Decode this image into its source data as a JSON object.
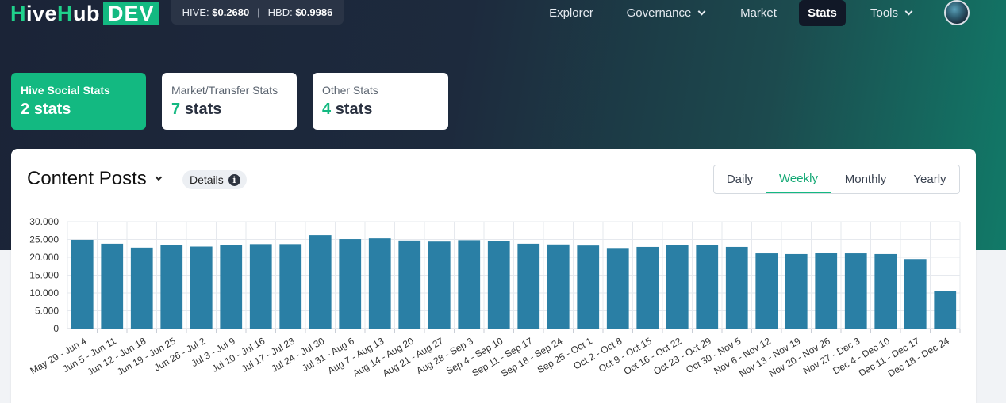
{
  "navbar": {
    "logo": {
      "h": "H",
      "ive": "ive",
      "h2": "H",
      "ub": "ub",
      "dev": "DEV"
    },
    "ticker": {
      "hive_label": "HIVE:",
      "hive_price": "$0.2680",
      "separator": "|",
      "hbd_label": "HBD:",
      "hbd_price": "$0.9986"
    },
    "items": [
      {
        "label": "Explorer",
        "dropdown": false,
        "active": false
      },
      {
        "label": "Governance",
        "dropdown": true,
        "active": false
      },
      {
        "label": "Market",
        "dropdown": false,
        "active": false
      },
      {
        "label": "Stats",
        "dropdown": false,
        "active": true
      },
      {
        "label": "Tools",
        "dropdown": true,
        "active": false
      }
    ]
  },
  "stat_cards": [
    {
      "title": "Hive Social Stats",
      "count": "2",
      "unit": "stats",
      "active": true
    },
    {
      "title": "Market/Transfer Stats",
      "count": "7",
      "unit": "stats",
      "active": false
    },
    {
      "title": "Other Stats",
      "count": "4",
      "unit": "stats",
      "active": false
    }
  ],
  "panel": {
    "title": "Content Posts",
    "details_label": "Details",
    "info_glyph": "i",
    "periods": [
      {
        "label": "Daily",
        "active": false
      },
      {
        "label": "Weekly",
        "active": true
      },
      {
        "label": "Monthly",
        "active": false
      },
      {
        "label": "Yearly",
        "active": false
      }
    ]
  },
  "colors": {
    "accent": "#13b981",
    "bar": "#2a7fa5",
    "nav_bg": "#1b2437"
  },
  "chart_data": {
    "type": "bar",
    "categories": [
      "May 29 - Jun 4",
      "Jun 5 - Jun 11",
      "Jun 12 - Jun 18",
      "Jun 19 - Jun 25",
      "Jun 26 - Jul 2",
      "Jul 3 - Jul 9",
      "Jul 10 - Jul 16",
      "Jul 17 - Jul 23",
      "Jul 24 - Jul 30",
      "Jul 31 - Aug 6",
      "Aug 7 - Aug 13",
      "Aug 14 - Aug 20",
      "Aug 21 - Aug 27",
      "Aug 28 - Sep 3",
      "Sep 4 - Sep 10",
      "Sep 11 - Sep 17",
      "Sep 18 - Sep 24",
      "Sep 25 - Oct 1",
      "Oct 2 - Oct 8",
      "Oct 9 - Oct 15",
      "Oct 16 - Oct 22",
      "Oct 23 - Oct 29",
      "Oct 30 - Nov 5",
      "Nov 6 - Nov 12",
      "Nov 13 - Nov 19",
      "Nov 20 - Nov 26",
      "Nov 27 - Dec 3",
      "Dec 4 - Dec 10",
      "Dec 11 - Dec 17",
      "Dec 18 - Dec 24"
    ],
    "values": [
      24900,
      23800,
      22700,
      23400,
      23000,
      23500,
      23700,
      23700,
      26200,
      25100,
      25300,
      24700,
      24400,
      24800,
      24600,
      23800,
      23600,
      23300,
      22600,
      22900,
      23500,
      23400,
      22900,
      21100,
      20900,
      21300,
      21100,
      20900,
      19500,
      10500
    ],
    "yticks": [
      "0",
      "5.000",
      "10.000",
      "15.000",
      "20.000",
      "25.000",
      "30.000"
    ],
    "ylim": [
      0,
      30000
    ],
    "grid": true,
    "legend": "none"
  }
}
